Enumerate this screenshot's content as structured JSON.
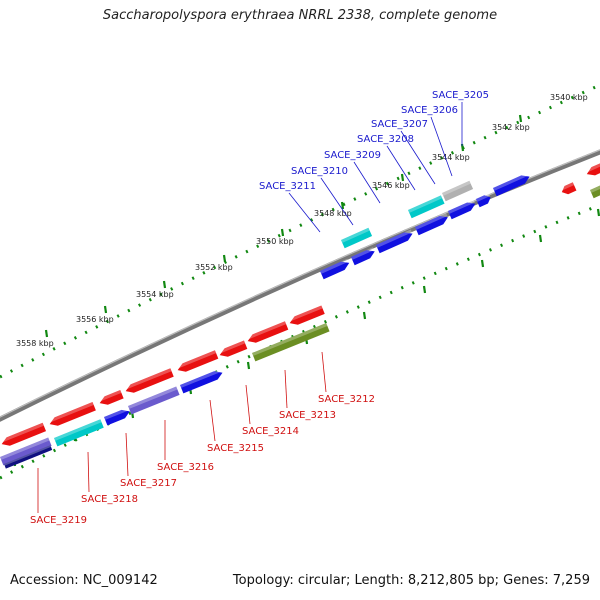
{
  "title": "Saccharopolyspora erythraea NRRL 2338, complete genome",
  "footer": {
    "accession": "Accession: NC_009142",
    "summary": "Topology: circular; Length: 8,212,805 bp; Genes: 7,259"
  },
  "colors": {
    "forward_cds": "#1010e0",
    "reverse_cds": "#e81010",
    "rna": "#00c8c8",
    "pseudo": "#b0b0b0",
    "misc": "#6b8e23",
    "lavender": "#6a5acd",
    "navy": "#101080",
    "tick_outer": "#118811",
    "tick_inner": "#118811",
    "backbone": "#777777",
    "label_forward": "#1a1acd",
    "label_reverse": "#d01010"
  },
  "scale": {
    "ticks": [
      {
        "label": "3540 kbp"
      },
      {
        "label": "3542 kbp"
      },
      {
        "label": "3544 kbp"
      },
      {
        "label": "3546 kbp"
      },
      {
        "label": "3548 kbp"
      },
      {
        "label": "3550 kbp"
      },
      {
        "label": "3552 kbp"
      },
      {
        "label": "3554 kbp"
      },
      {
        "label": "3556 kbp"
      },
      {
        "label": "3558 kbp"
      }
    ]
  },
  "genes_forward": [
    {
      "label": "SACE_3205"
    },
    {
      "label": "SACE_3206"
    },
    {
      "label": "SACE_3207"
    },
    {
      "label": "SACE_3208"
    },
    {
      "label": "SACE_3209"
    },
    {
      "label": "SACE_3210"
    },
    {
      "label": "SACE_3211"
    }
  ],
  "genes_reverse": [
    {
      "label": "SACE_3212"
    },
    {
      "label": "SACE_3213"
    },
    {
      "label": "SACE_3214"
    },
    {
      "label": "SACE_3215"
    },
    {
      "label": "SACE_3216"
    },
    {
      "label": "SACE_3217"
    },
    {
      "label": "SACE_3218"
    },
    {
      "label": "SACE_3219"
    }
  ]
}
